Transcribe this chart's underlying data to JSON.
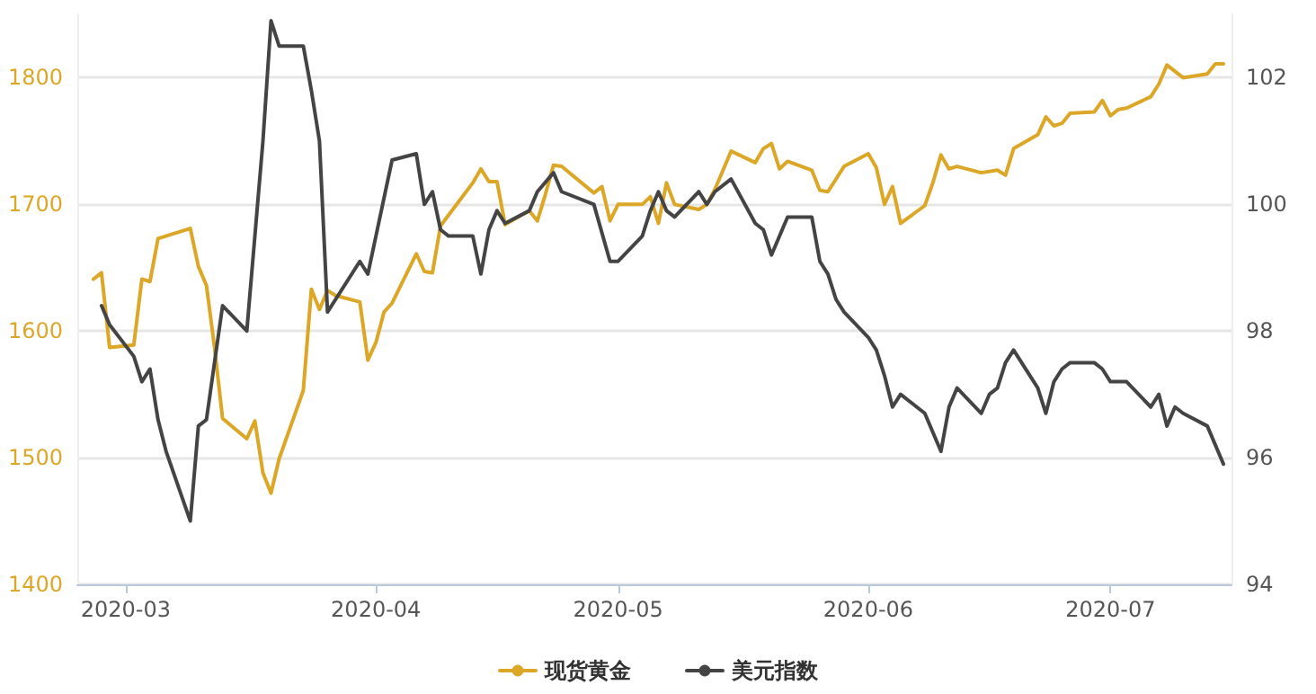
{
  "chart_data": {
    "type": "line",
    "legend": "bottom",
    "grid": "y",
    "marker": "none",
    "line_style": "solid",
    "xlim": [
      "2020-02-24",
      "2020-07-16"
    ],
    "xticks": [
      {
        "value": "2020-03-01",
        "label": "2020-03"
      },
      {
        "value": "2020-04-01",
        "label": "2020-04"
      },
      {
        "value": "2020-05-01",
        "label": "2020-05"
      },
      {
        "value": "2020-06-01",
        "label": "2020-06"
      },
      {
        "value": "2020-07-01",
        "label": "2020-07"
      }
    ],
    "ylim": [
      1400,
      1850
    ],
    "yticks": [
      1400,
      1500,
      1600,
      1700,
      1800
    ],
    "y2lim": [
      94,
      103
    ],
    "y2ticks": [
      94,
      96,
      98,
      100,
      102
    ],
    "series": [
      {
        "name": "现货黄金",
        "color": "#dca626",
        "x": [
          "2020-02-26",
          "2020-02-27",
          "2020-02-28",
          "2020-03-02",
          "2020-03-03",
          "2020-03-04",
          "2020-03-05",
          "2020-03-09",
          "2020-03-10",
          "2020-03-11",
          "2020-03-12",
          "2020-03-13",
          "2020-03-16",
          "2020-03-17",
          "2020-03-18",
          "2020-03-19",
          "2020-03-20",
          "2020-03-23",
          "2020-03-24",
          "2020-03-25",
          "2020-03-26",
          "2020-03-27",
          "2020-03-30",
          "2020-03-31",
          "2020-04-01",
          "2020-04-02",
          "2020-04-03",
          "2020-04-06",
          "2020-04-07",
          "2020-04-08",
          "2020-04-09",
          "2020-04-13",
          "2020-04-14",
          "2020-04-15",
          "2020-04-16",
          "2020-04-17",
          "2020-04-20",
          "2020-04-21",
          "2020-04-22",
          "2020-04-23",
          "2020-04-24",
          "2020-04-28",
          "2020-04-29",
          "2020-04-30",
          "2020-05-01",
          "2020-05-04",
          "2020-05-05",
          "2020-05-06",
          "2020-05-07",
          "2020-05-08",
          "2020-05-11",
          "2020-05-12",
          "2020-05-13",
          "2020-05-15",
          "2020-05-18",
          "2020-05-19",
          "2020-05-20",
          "2020-05-21",
          "2020-05-22",
          "2020-05-25",
          "2020-05-26",
          "2020-05-27",
          "2020-05-29",
          "2020-06-01",
          "2020-06-02",
          "2020-06-03",
          "2020-06-04",
          "2020-06-05",
          "2020-06-08",
          "2020-06-09",
          "2020-06-10",
          "2020-06-11",
          "2020-06-12",
          "2020-06-15",
          "2020-06-17",
          "2020-06-18",
          "2020-06-19",
          "2020-06-22",
          "2020-06-23",
          "2020-06-24",
          "2020-06-25",
          "2020-06-26",
          "2020-06-29",
          "2020-06-30",
          "2020-07-01",
          "2020-07-02",
          "2020-07-03",
          "2020-07-06",
          "2020-07-07",
          "2020-07-08",
          "2020-07-10",
          "2020-07-13",
          "2020-07-14",
          "2020-07-15"
        ],
        "values": [
          1641,
          1646,
          1587,
          1589,
          1641,
          1639,
          1673,
          1681,
          1651,
          1636,
          1587,
          1531,
          1515,
          1529,
          1488,
          1472,
          1499,
          1553,
          1633,
          1617,
          1632,
          1628,
          1623,
          1577,
          1591,
          1615,
          1622,
          1661,
          1647,
          1646,
          1683,
          1717,
          1728,
          1718,
          1718,
          1684,
          1695,
          1687,
          1708,
          1731,
          1730,
          1709,
          1714,
          1687,
          1700,
          1700,
          1706,
          1685,
          1717,
          1700,
          1696,
          1700,
          1712,
          1742,
          1733,
          1744,
          1748,
          1728,
          1734,
          1727,
          1711,
          1710,
          1730,
          1740,
          1729,
          1700,
          1714,
          1685,
          1699,
          1717,
          1739,
          1728,
          1730,
          1725,
          1727,
          1723,
          1744,
          1755,
          1769,
          1762,
          1764,
          1772,
          1773,
          1782,
          1770,
          1775,
          1776,
          1785,
          1795,
          1810,
          1800,
          1803,
          1811,
          1811
        ]
      },
      {
        "name": "美元指数",
        "color": "#444444",
        "axis": "y2",
        "x": [
          "2020-02-27",
          "2020-02-28",
          "2020-03-02",
          "2020-03-03",
          "2020-03-04",
          "2020-03-05",
          "2020-03-06",
          "2020-03-09",
          "2020-03-10",
          "2020-03-11",
          "2020-03-13",
          "2020-03-16",
          "2020-03-18",
          "2020-03-19",
          "2020-03-20",
          "2020-03-23",
          "2020-03-24",
          "2020-03-25",
          "2020-03-26",
          "2020-03-30",
          "2020-03-31",
          "2020-04-03",
          "2020-04-06",
          "2020-04-07",
          "2020-04-08",
          "2020-04-09",
          "2020-04-10",
          "2020-04-13",
          "2020-04-14",
          "2020-04-15",
          "2020-04-16",
          "2020-04-17",
          "2020-04-20",
          "2020-04-21",
          "2020-04-23",
          "2020-04-24",
          "2020-04-28",
          "2020-04-30",
          "2020-05-01",
          "2020-05-04",
          "2020-05-05",
          "2020-05-06",
          "2020-05-07",
          "2020-05-08",
          "2020-05-11",
          "2020-05-12",
          "2020-05-13",
          "2020-05-15",
          "2020-05-18",
          "2020-05-19",
          "2020-05-20",
          "2020-05-22",
          "2020-05-25",
          "2020-05-26",
          "2020-05-27",
          "2020-05-28",
          "2020-05-29",
          "2020-06-01",
          "2020-06-02",
          "2020-06-03",
          "2020-06-04",
          "2020-06-05",
          "2020-06-08",
          "2020-06-10",
          "2020-06-11",
          "2020-06-12",
          "2020-06-15",
          "2020-06-16",
          "2020-06-17",
          "2020-06-18",
          "2020-06-19",
          "2020-06-22",
          "2020-06-23",
          "2020-06-24",
          "2020-06-25",
          "2020-06-26",
          "2020-06-29",
          "2020-06-30",
          "2020-07-01",
          "2020-07-02",
          "2020-07-03",
          "2020-07-06",
          "2020-07-07",
          "2020-07-08",
          "2020-07-09",
          "2020-07-10",
          "2020-07-13",
          "2020-07-15"
        ],
        "values": [
          98.4,
          98.1,
          97.6,
          97.2,
          97.4,
          96.6,
          96.1,
          95.0,
          96.5,
          96.6,
          98.4,
          98.0,
          101.0,
          102.9,
          102.5,
          102.5,
          101.8,
          101.0,
          98.3,
          99.1,
          98.9,
          100.7,
          100.8,
          100.0,
          100.2,
          99.6,
          99.5,
          99.5,
          98.9,
          99.6,
          99.9,
          99.7,
          99.9,
          100.2,
          100.5,
          100.2,
          100.0,
          99.1,
          99.1,
          99.5,
          99.9,
          100.2,
          99.9,
          99.8,
          100.2,
          100.0,
          100.2,
          100.4,
          99.7,
          99.6,
          99.2,
          99.8,
          99.8,
          99.1,
          98.9,
          98.5,
          98.3,
          97.9,
          97.7,
          97.3,
          96.8,
          97.0,
          96.7,
          96.1,
          96.8,
          97.1,
          96.7,
          97.0,
          97.1,
          97.5,
          97.7,
          97.1,
          96.7,
          97.2,
          97.4,
          97.5,
          97.5,
          97.4,
          97.2,
          97.2,
          97.2,
          96.8,
          97.0,
          96.5,
          96.8,
          96.7,
          96.5,
          95.9
        ]
      }
    ]
  }
}
